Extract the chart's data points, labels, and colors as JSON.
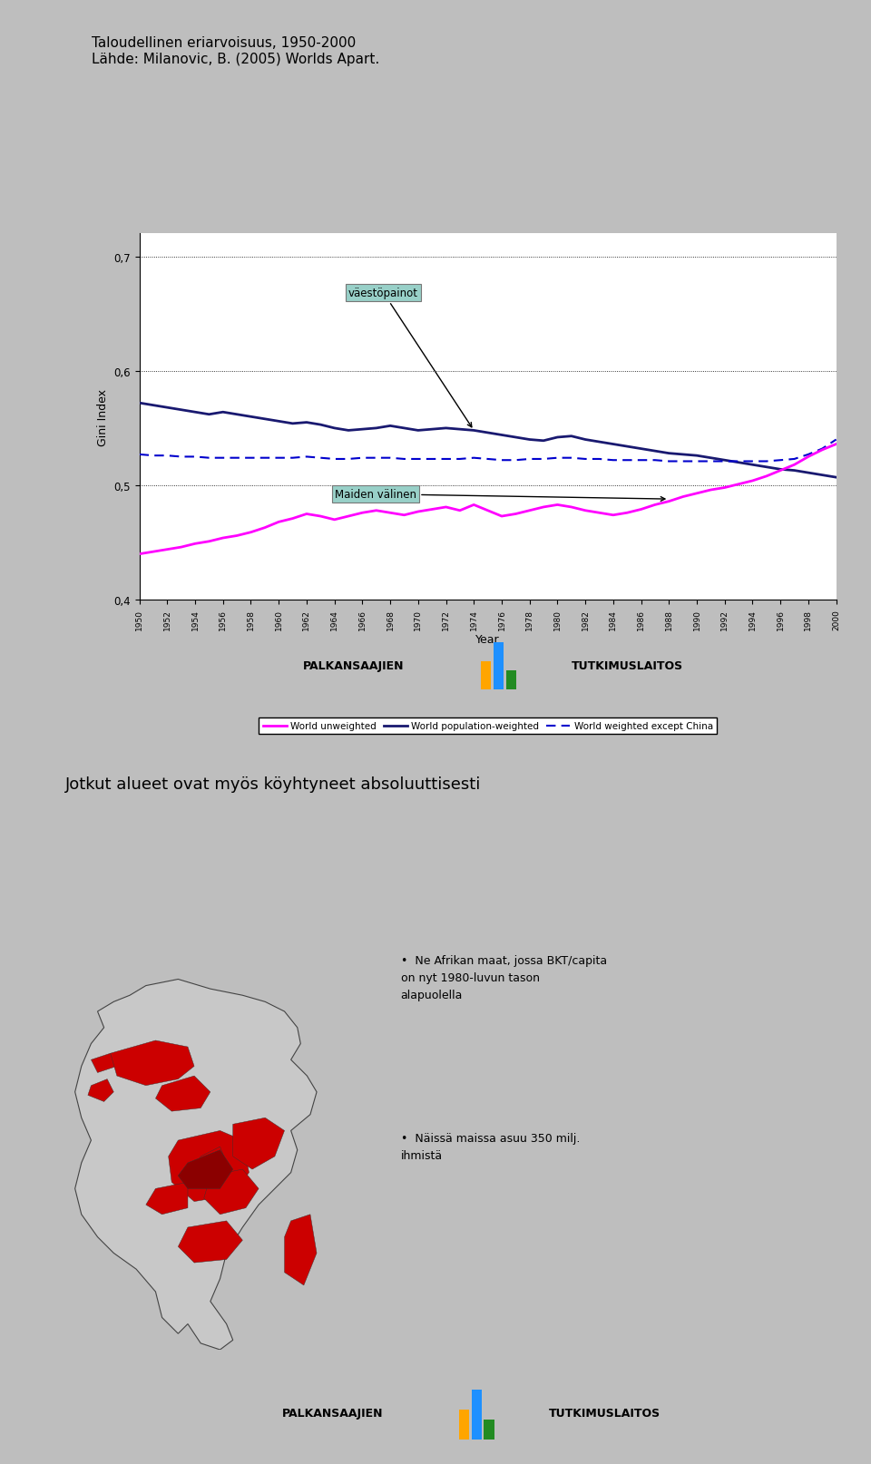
{
  "title_line1": "Taloudellinen eriarvoisuus, 1950-2000",
  "title_line2": "Lähde: Milanovic, B. (2005) Worlds Apart.",
  "slide2_title": "Jotkut alueet ovat myös köyhtyneet absoluuttisesti",
  "slide2_bullet1": "Ne Afrikan maat, jossa BKT/capita\non nyt 1980-luvun tason\nalapuolella",
  "slide2_bullet2": "Näissä maissa asuu 350 milj.\nihmistä",
  "ylabel": "Gini Index",
  "xlabel": "Year",
  "ylim": [
    0.4,
    0.72
  ],
  "yticks": [
    0.4,
    0.5,
    0.6,
    0.7
  ],
  "ytick_labels": [
    "0,4",
    "0,5",
    "0,6",
    "0,7"
  ],
  "years": [
    1950,
    1951,
    1952,
    1953,
    1954,
    1955,
    1956,
    1957,
    1958,
    1959,
    1960,
    1961,
    1962,
    1963,
    1964,
    1965,
    1966,
    1967,
    1968,
    1969,
    1970,
    1971,
    1972,
    1973,
    1974,
    1975,
    1976,
    1977,
    1978,
    1979,
    1980,
    1981,
    1982,
    1983,
    1984,
    1985,
    1986,
    1987,
    1988,
    1989,
    1990,
    1991,
    1992,
    1993,
    1994,
    1995,
    1996,
    1997,
    1998,
    1999,
    2000
  ],
  "world_unweighted": [
    0.44,
    0.442,
    0.444,
    0.446,
    0.449,
    0.451,
    0.454,
    0.456,
    0.459,
    0.463,
    0.468,
    0.471,
    0.475,
    0.473,
    0.47,
    0.473,
    0.476,
    0.478,
    0.476,
    0.474,
    0.477,
    0.479,
    0.481,
    0.478,
    0.483,
    0.478,
    0.473,
    0.475,
    0.478,
    0.481,
    0.483,
    0.481,
    0.478,
    0.476,
    0.474,
    0.476,
    0.479,
    0.483,
    0.486,
    0.49,
    0.493,
    0.496,
    0.498,
    0.501,
    0.504,
    0.508,
    0.513,
    0.518,
    0.525,
    0.531,
    0.536
  ],
  "world_pop_weighted": [
    0.572,
    0.57,
    0.568,
    0.566,
    0.564,
    0.562,
    0.564,
    0.562,
    0.56,
    0.558,
    0.556,
    0.554,
    0.555,
    0.553,
    0.55,
    0.548,
    0.549,
    0.55,
    0.552,
    0.55,
    0.548,
    0.549,
    0.55,
    0.549,
    0.548,
    0.546,
    0.544,
    0.542,
    0.54,
    0.539,
    0.542,
    0.543,
    0.54,
    0.538,
    0.536,
    0.534,
    0.532,
    0.53,
    0.528,
    0.527,
    0.526,
    0.524,
    0.522,
    0.52,
    0.518,
    0.516,
    0.514,
    0.513,
    0.511,
    0.509,
    0.507
  ],
  "world_weighted_exc_china": [
    0.527,
    0.526,
    0.526,
    0.525,
    0.525,
    0.524,
    0.524,
    0.524,
    0.524,
    0.524,
    0.524,
    0.524,
    0.525,
    0.524,
    0.523,
    0.523,
    0.524,
    0.524,
    0.524,
    0.523,
    0.523,
    0.523,
    0.523,
    0.523,
    0.524,
    0.523,
    0.522,
    0.522,
    0.523,
    0.523,
    0.524,
    0.524,
    0.523,
    0.523,
    0.522,
    0.522,
    0.522,
    0.522,
    0.521,
    0.521,
    0.521,
    0.521,
    0.521,
    0.521,
    0.521,
    0.521,
    0.522,
    0.523,
    0.527,
    0.532,
    0.54
  ],
  "unweighted_color": "#FF00FF",
  "pop_weighted_color": "#191970",
  "exc_china_color": "#0000CD",
  "annotation_box_color": "#98D0C8",
  "legend_items": [
    "World unweighted",
    "World population-weighted",
    "World weighted except China"
  ],
  "logo_text1": "PALKANSAAJIEN",
  "logo_text2": "TUTKIMUSLAITOS",
  "slide1_strip_colors": [
    "#C8A060",
    "#9B5E30",
    "#C0C030",
    "#3060C0",
    "#8B1010"
  ],
  "slide2_strip_colors": [
    "#C8A060",
    "#9B5E30",
    "#C0C030",
    "#3060C0",
    "#8B1010"
  ],
  "icon_colors": [
    "#FFA500",
    "#1E90FF",
    "#228B22"
  ],
  "outer_bg": "#BEBEBE",
  "slide_bg": "#FFFFFF",
  "between_gap_color": "#BEBEBE"
}
